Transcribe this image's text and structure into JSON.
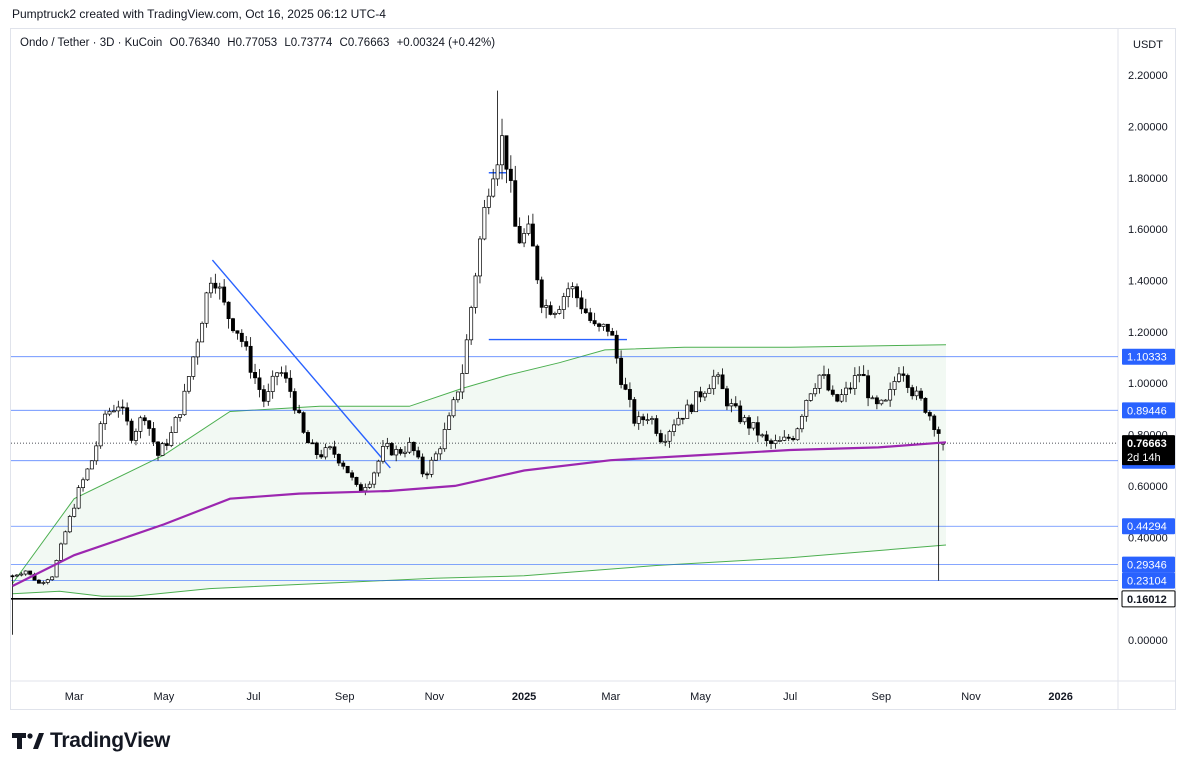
{
  "header": {
    "text": "Pumptruck2 created with TradingView.com, Oct 16, 2025 06:12 UTC-4"
  },
  "legend": {
    "symbol": "Ondo / Tether · 3D · KuCoin",
    "open": "O0.76340",
    "high": "H0.77053",
    "low": "L0.73774",
    "close": "C0.76663",
    "change": "+0.00324 (+0.42%)"
  },
  "axis_unit": "USDT",
  "brand": {
    "name": "TradingView"
  },
  "colors": {
    "up": "#ffffff",
    "down": "#000000",
    "ma": "#9c27b0",
    "band": "#4caf50",
    "line": "#2962ff"
  },
  "chart_data": {
    "type": "candlestick",
    "y_ticks": [
      "2.20000",
      "2.00000",
      "1.80000",
      "1.60000",
      "1.40000",
      "1.20000",
      "1.00000",
      "0.80000",
      "0.60000",
      "0.40000",
      "0.00000"
    ],
    "ylim": [
      -0.16,
      2.38
    ],
    "x_ticks": [
      {
        "label": "Mar",
        "date": "2024-03-01"
      },
      {
        "label": "May",
        "date": "2024-05-01"
      },
      {
        "label": "Jul",
        "date": "2024-07-01"
      },
      {
        "label": "Sep",
        "date": "2024-09-01"
      },
      {
        "label": "Nov",
        "date": "2024-11-01"
      },
      {
        "label": "2025",
        "date": "2025-01-01",
        "bold": true
      },
      {
        "label": "Mar",
        "date": "2025-03-01"
      },
      {
        "label": "May",
        "date": "2025-05-01"
      },
      {
        "label": "Jul",
        "date": "2025-07-01"
      },
      {
        "label": "Sep",
        "date": "2025-09-01"
      },
      {
        "label": "Nov",
        "date": "2025-11-01"
      },
      {
        "label": "2026",
        "date": "2026-01-01",
        "bold": true
      }
    ],
    "xlim": [
      "2024-01-18",
      "2026-02-09"
    ],
    "current_price": {
      "value": 0.76663,
      "label": "0.76663",
      "countdown": "2d 14h"
    },
    "price_levels": [
      {
        "value": 1.10333,
        "label": "1.10333",
        "style": "blue"
      },
      {
        "value": 0.89446,
        "label": "0.89446",
        "style": "blue"
      },
      {
        "value": 0.69824,
        "label": "0.69824",
        "style": "blue"
      },
      {
        "value": 0.44294,
        "label": "0.44294",
        "style": "blue"
      },
      {
        "value": 0.29346,
        "label": "0.29346",
        "style": "blue"
      },
      {
        "value": 0.23104,
        "label": "0.23104",
        "style": "blue"
      },
      {
        "value": 0.16012,
        "label": "0.16012",
        "style": "black"
      }
    ],
    "trendlines": [
      {
        "from": [
          "2024-06-03",
          1.48
        ],
        "to": [
          "2024-10-02",
          0.67
        ]
      },
      {
        "from": [
          "2024-12-08",
          1.17
        ],
        "to": [
          "2025-03-12",
          1.17
        ]
      },
      {
        "from": [
          "2024-12-08",
          1.82
        ],
        "to": [
          "2024-12-20",
          1.82
        ]
      }
    ],
    "ohlc_anchors": [
      [
        "2024-01-19",
        0.25
      ],
      [
        "2024-01-28",
        0.27
      ],
      [
        "2024-02-06",
        0.22
      ],
      [
        "2024-02-15",
        0.25
      ],
      [
        "2024-02-24",
        0.42
      ],
      [
        "2024-03-04",
        0.58
      ],
      [
        "2024-03-13",
        0.7
      ],
      [
        "2024-03-22",
        0.88
      ],
      [
        "2024-03-31",
        0.92
      ],
      [
        "2024-04-09",
        0.8
      ],
      [
        "2024-04-18",
        0.88
      ],
      [
        "2024-04-27",
        0.72
      ],
      [
        "2024-05-06",
        0.8
      ],
      [
        "2024-05-15",
        0.95
      ],
      [
        "2024-05-24",
        1.18
      ],
      [
        "2024-06-03",
        1.45
      ],
      [
        "2024-06-12",
        1.28
      ],
      [
        "2024-06-21",
        1.2
      ],
      [
        "2024-06-30",
        1.05
      ],
      [
        "2024-07-09",
        0.92
      ],
      [
        "2024-07-18",
        1.06
      ],
      [
        "2024-07-27",
        0.96
      ],
      [
        "2024-08-05",
        0.78
      ],
      [
        "2024-08-14",
        0.72
      ],
      [
        "2024-08-23",
        0.74
      ],
      [
        "2024-09-01",
        0.68
      ],
      [
        "2024-09-10",
        0.58
      ],
      [
        "2024-09-19",
        0.63
      ],
      [
        "2024-09-28",
        0.75
      ],
      [
        "2024-10-07",
        0.73
      ],
      [
        "2024-10-16",
        0.76
      ],
      [
        "2024-10-25",
        0.64
      ],
      [
        "2024-11-03",
        0.73
      ],
      [
        "2024-11-12",
        0.87
      ],
      [
        "2024-11-21",
        1.07
      ],
      [
        "2024-11-30",
        1.48
      ],
      [
        "2024-12-09",
        1.82
      ],
      [
        "2024-12-18",
        1.96
      ],
      [
        "2024-12-27",
        1.56
      ],
      [
        "2025-01-05",
        1.58
      ],
      [
        "2025-01-14",
        1.3
      ],
      [
        "2025-01-23",
        1.3
      ],
      [
        "2025-02-01",
        1.38
      ],
      [
        "2025-02-10",
        1.3
      ],
      [
        "2025-02-19",
        1.2
      ],
      [
        "2025-02-28",
        1.22
      ],
      [
        "2025-03-09",
        1.0
      ],
      [
        "2025-03-18",
        0.84
      ],
      [
        "2025-03-27",
        0.88
      ],
      [
        "2025-04-05",
        0.78
      ],
      [
        "2025-04-14",
        0.86
      ],
      [
        "2025-04-23",
        0.9
      ],
      [
        "2025-05-02",
        0.97
      ],
      [
        "2025-05-11",
        1.03
      ],
      [
        "2025-05-20",
        0.92
      ],
      [
        "2025-05-29",
        0.86
      ],
      [
        "2025-06-07",
        0.82
      ],
      [
        "2025-06-16",
        0.76
      ],
      [
        "2025-06-25",
        0.77
      ],
      [
        "2025-07-04",
        0.8
      ],
      [
        "2025-07-13",
        0.96
      ],
      [
        "2025-07-22",
        1.04
      ],
      [
        "2025-07-31",
        0.92
      ],
      [
        "2025-08-09",
        0.97
      ],
      [
        "2025-08-18",
        1.05
      ],
      [
        "2025-08-27",
        0.9
      ],
      [
        "2025-09-05",
        0.92
      ],
      [
        "2025-09-14",
        1.08
      ],
      [
        "2025-09-23",
        0.96
      ],
      [
        "2025-10-02",
        0.9
      ],
      [
        "2025-10-11",
        0.8
      ],
      [
        "2025-10-15",
        0.76663
      ]
    ],
    "ma_purple": [
      [
        "2024-01-19",
        0.21
      ],
      [
        "2024-03-01",
        0.33
      ],
      [
        "2024-05-01",
        0.45
      ],
      [
        "2024-06-15",
        0.55
      ],
      [
        "2024-08-01",
        0.57
      ],
      [
        "2024-10-01",
        0.58
      ],
      [
        "2024-11-15",
        0.6
      ],
      [
        "2025-01-01",
        0.66
      ],
      [
        "2025-03-01",
        0.7
      ],
      [
        "2025-05-01",
        0.72
      ],
      [
        "2025-07-01",
        0.74
      ],
      [
        "2025-08-30",
        0.75
      ],
      [
        "2025-10-15",
        0.77
      ]
    ],
    "band_upper": [
      [
        "2024-01-19",
        0.22
      ],
      [
        "2024-03-01",
        0.55
      ],
      [
        "2024-05-01",
        0.72
      ],
      [
        "2024-06-15",
        0.89
      ],
      [
        "2024-08-15",
        0.91
      ],
      [
        "2024-10-15",
        0.91
      ],
      [
        "2024-11-20",
        0.98
      ],
      [
        "2024-12-20",
        1.03
      ],
      [
        "2025-01-25",
        1.08
      ],
      [
        "2025-02-25",
        1.13
      ],
      [
        "2025-04-20",
        1.14
      ],
      [
        "2025-07-01",
        1.14
      ],
      [
        "2025-10-15",
        1.15
      ]
    ],
    "band_lower": [
      [
        "2024-01-19",
        0.18
      ],
      [
        "2024-02-20",
        0.19
      ],
      [
        "2024-03-20",
        0.17
      ],
      [
        "2024-04-10",
        0.17
      ],
      [
        "2024-06-01",
        0.2
      ],
      [
        "2024-08-15",
        0.22
      ],
      [
        "2024-11-01",
        0.24
      ],
      [
        "2025-01-01",
        0.25
      ],
      [
        "2025-04-01",
        0.29
      ],
      [
        "2025-07-01",
        0.32
      ],
      [
        "2025-10-15",
        0.37
      ]
    ]
  }
}
